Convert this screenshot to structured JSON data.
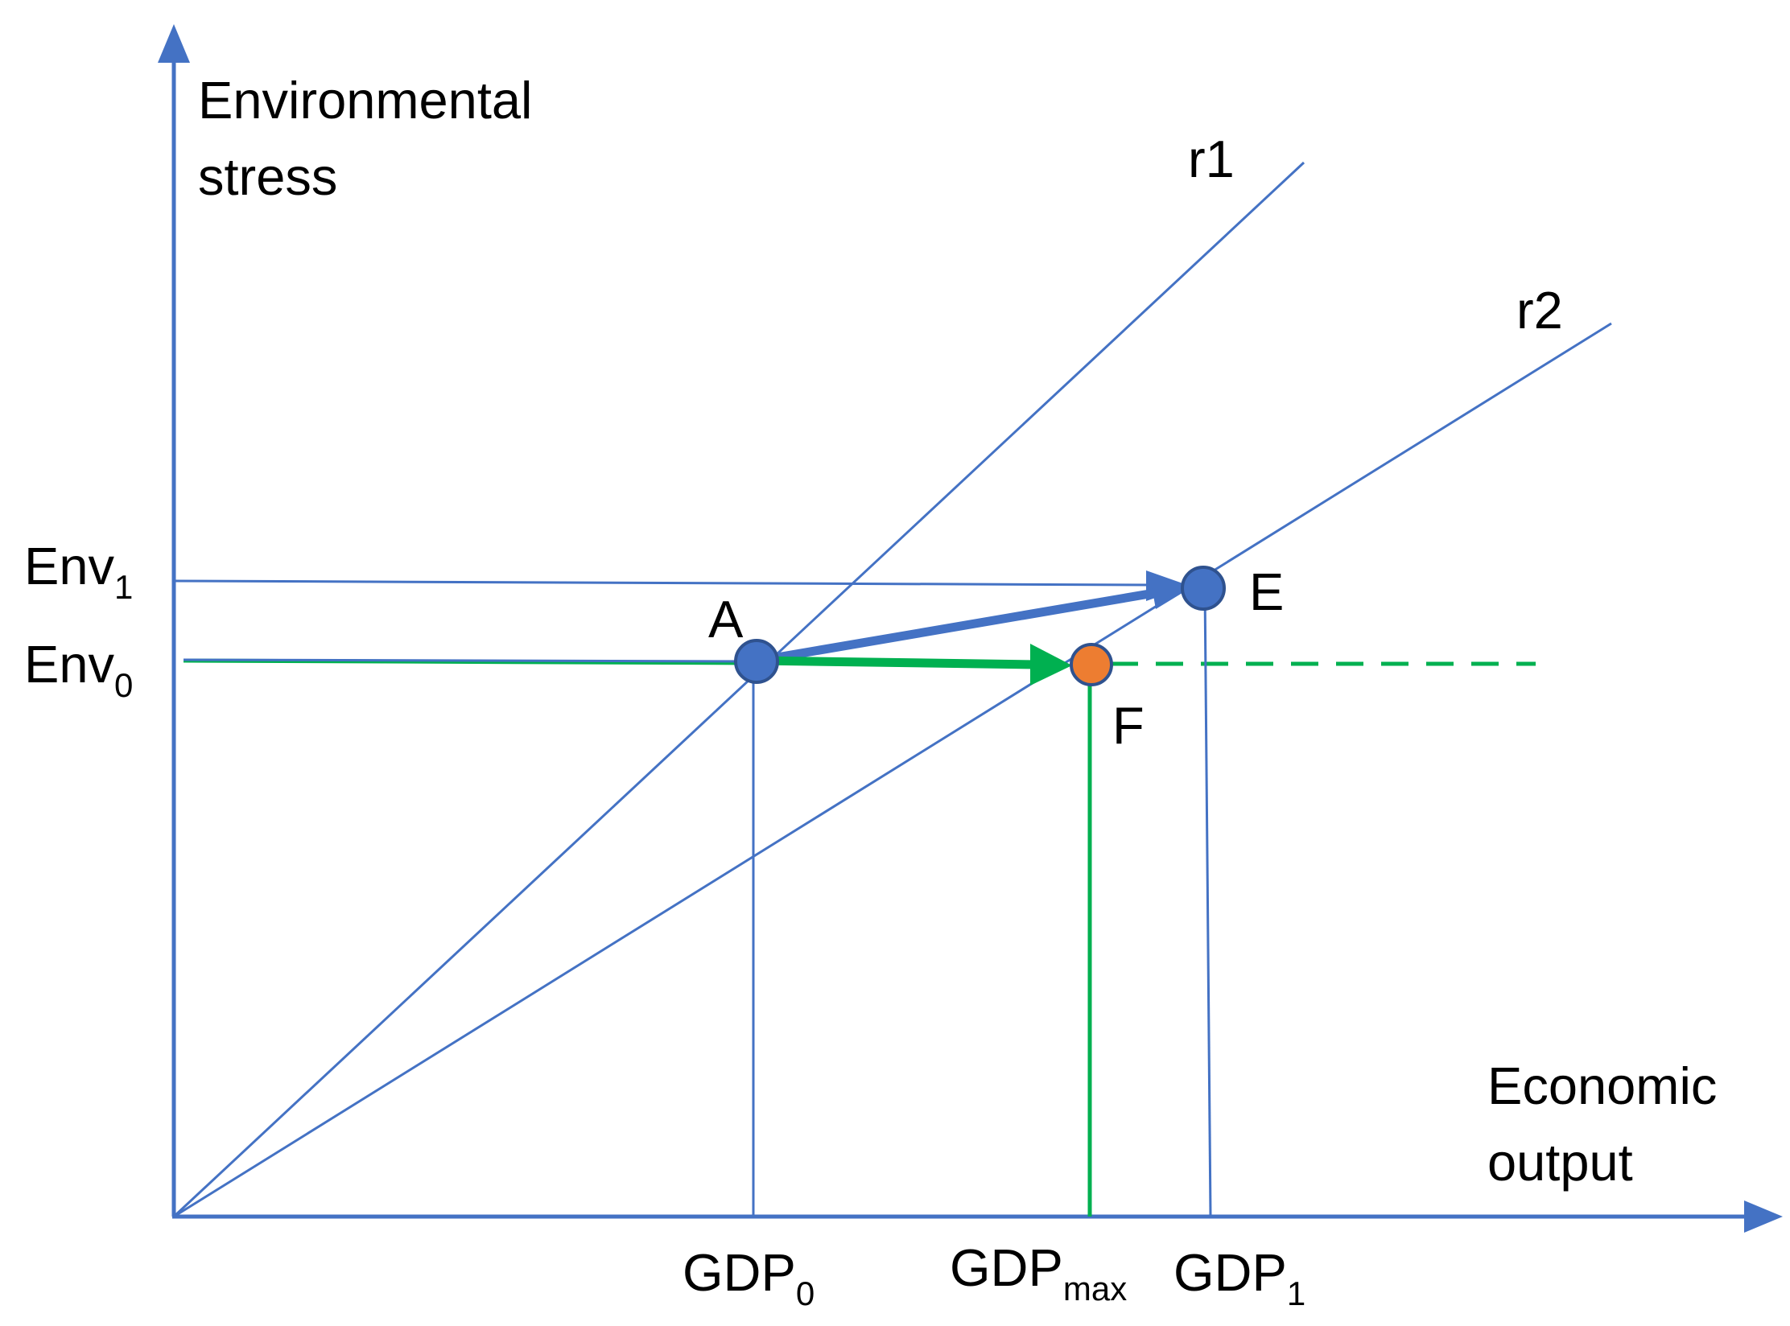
{
  "axes": {
    "y_label_line1": "Environmental",
    "y_label_line2": "stress",
    "x_label_line1": "Economic",
    "x_label_line2": "output"
  },
  "rays": [
    {
      "label": "r1"
    },
    {
      "label": "r2"
    }
  ],
  "points": {
    "A": {
      "label": "A",
      "color": "#4472C4"
    },
    "E": {
      "label": "E",
      "color": "#4472C4"
    },
    "F": {
      "label": "F",
      "color": "#ED7D31"
    }
  },
  "y_ticks": {
    "env1": {
      "base": "Env",
      "sub": "1"
    },
    "env0": {
      "base": "Env",
      "sub": "0"
    }
  },
  "x_ticks": {
    "gdp0": {
      "base": "GDP",
      "sub": "0"
    },
    "gdpmax": {
      "base": "GDP",
      "sub": "max"
    },
    "gdp1": {
      "base": "GDP",
      "sub": "1"
    }
  },
  "colors": {
    "blue": "#4472C4",
    "green": "#00B050",
    "orange": "#ED7D31"
  }
}
